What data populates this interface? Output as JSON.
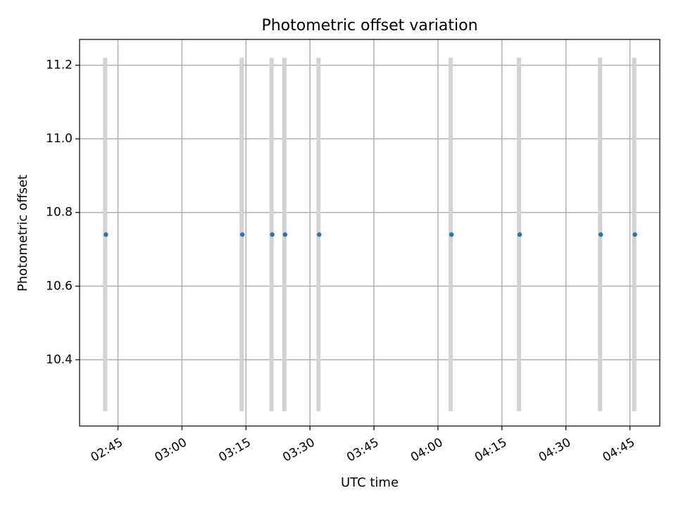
{
  "chart_data": {
    "type": "scatter",
    "title": "Photometric offset variation",
    "xlabel": "UTC time",
    "ylabel": "Photometric offset",
    "xlim": [
      "02:36",
      "04:52"
    ],
    "ylim": [
      10.22,
      11.27
    ],
    "x_ticks": [
      "02:45",
      "03:00",
      "03:15",
      "03:30",
      "03:45",
      "04:00",
      "04:15",
      "04:30",
      "04:45"
    ],
    "y_ticks": [
      10.4,
      10.6,
      10.8,
      11.0,
      11.2
    ],
    "y_tick_labels": [
      "10.4",
      "10.6",
      "10.8",
      "11.0",
      "11.2"
    ],
    "grid": true,
    "point_color": "#1f77b4",
    "errorbar_color": "#d3d3d3",
    "series": [
      {
        "points": [
          {
            "x": "02:42",
            "y": 10.74,
            "y_err": 0.48
          },
          {
            "x": "03:14",
            "y": 10.74,
            "y_err": 0.48
          },
          {
            "x": "03:21",
            "y": 10.74,
            "y_err": 0.48
          },
          {
            "x": "03:24",
            "y": 10.74,
            "y_err": 0.48
          },
          {
            "x": "03:32",
            "y": 10.74,
            "y_err": 0.48
          },
          {
            "x": "04:03",
            "y": 10.74,
            "y_err": 0.48
          },
          {
            "x": "04:19",
            "y": 10.74,
            "y_err": 0.48
          },
          {
            "x": "04:38",
            "y": 10.74,
            "y_err": 0.48
          },
          {
            "x": "04:46",
            "y": 10.74,
            "y_err": 0.48
          }
        ]
      }
    ]
  }
}
